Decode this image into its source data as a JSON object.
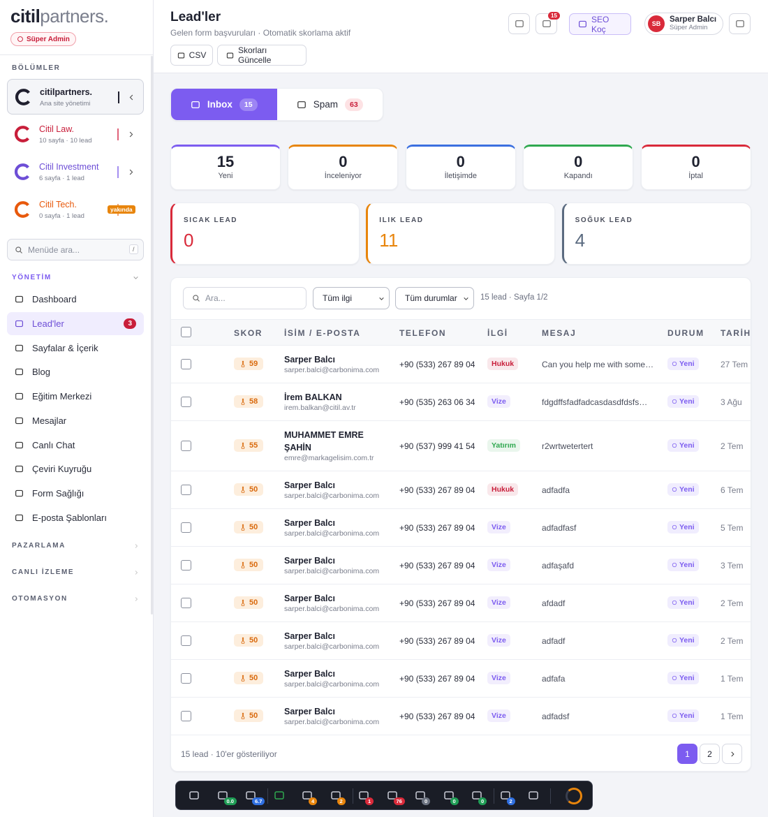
{
  "sidebar": {
    "logo": [
      "citil",
      "partners."
    ],
    "role_badge": "Süper Admin",
    "sections_label": "BÖLÜMLER",
    "sites": [
      {
        "name": "citilpartners.",
        "sub": "Ana site yönetimi",
        "color": "#1f1f2e",
        "bar": "#1f1f2e",
        "active": true,
        "tag": null
      },
      {
        "name": "Citil Law.",
        "sub": "10 sayfa · 10 lead",
        "color": "#c81e3a",
        "bar": "#e0637a",
        "active": false,
        "tag": null
      },
      {
        "name": "Citil Investment",
        "sub": "6 sayfa · 1 lead",
        "color": "#6d4ed6",
        "bar": "#a48ef0",
        "active": false,
        "tag": null
      },
      {
        "name": "Citil Tech.",
        "sub": "0 sayfa · 1 lead",
        "color": "#e8590c",
        "bar": "#f5a46b",
        "active": false,
        "tag": "yakında"
      }
    ],
    "search_placeholder": "Menüde ara...",
    "search_shortcut": "/",
    "group": {
      "label": "YÖNETİM",
      "items": [
        {
          "label": "Dashboard",
          "badge": null,
          "active": false
        },
        {
          "label": "Lead'ler",
          "badge": "3",
          "active": true
        },
        {
          "label": "Sayfalar & İçerik",
          "badge": null,
          "active": false
        },
        {
          "label": "Blog",
          "badge": null,
          "active": false
        },
        {
          "label": "Eğitim Merkezi",
          "badge": null,
          "active": false
        },
        {
          "label": "Mesajlar",
          "badge": null,
          "active": false
        },
        {
          "label": "Canlı Chat",
          "badge": null,
          "active": false
        },
        {
          "label": "Çeviri Kuyruğu",
          "badge": null,
          "active": false
        },
        {
          "label": "Form Sağlığı",
          "badge": null,
          "active": false
        },
        {
          "label": "E-posta Şablonları",
          "badge": null,
          "active": false
        }
      ]
    },
    "collapsed_groups": [
      "PAZARLAMA",
      "CANLI İZLEME",
      "OTOMASYON"
    ]
  },
  "header": {
    "title": "Lead'ler",
    "subtitle": "Gelen form başvuruları · Otomatik skorlama aktif",
    "buttons": [
      "CSV",
      "Skorları Güncelle"
    ],
    "notifications": "15",
    "coach": "SEO Koç",
    "user": {
      "initials": "SB",
      "name": "Sarper Balcı",
      "role": "Süper Admin"
    }
  },
  "tabs": [
    {
      "label": "Inbox",
      "count": 15,
      "active": true
    },
    {
      "label": "Spam",
      "count": 63,
      "active": false
    }
  ],
  "stats": [
    {
      "value": 15,
      "label": "Yeni",
      "color": "#7c5cf0"
    },
    {
      "value": 0,
      "label": "İnceleniyor",
      "color": "#e8850c"
    },
    {
      "value": 0,
      "label": "İletişimde",
      "color": "#3b6fe0"
    },
    {
      "value": 0,
      "label": "Kapandı",
      "color": "#2fa84f"
    },
    {
      "value": 0,
      "label": "İptal",
      "color": "#d92a3a"
    }
  ],
  "temperatures": [
    {
      "label": "SICAK LEAD",
      "value": 0,
      "color": "#d92a3a"
    },
    {
      "label": "ILIK LEAD",
      "value": 11,
      "color": "#e8850c"
    },
    {
      "label": "SOĞUK LEAD",
      "value": 4,
      "color": "#5b6b80"
    }
  ],
  "filters": {
    "search_placeholder": "Ara...",
    "selects": [
      "Tüm ilgi",
      "Tüm durumlar"
    ],
    "info": "15 lead · Sayfa 1/2"
  },
  "table": {
    "columns": [
      "SKOR",
      "İSİM / E-POSTA",
      "TELEFON",
      "İLGİ",
      "MESAJ",
      "DURUM",
      "TARİH"
    ],
    "rows": [
      {
        "score": 59,
        "name": "Sarper Balcı",
        "email": "sarper.balci@carbonima.com",
        "phone": "+90 (533) 267 89 04",
        "interest": "Hukuk",
        "interest_color": "#c81e3a",
        "message": "Can you help me with some…",
        "status": "Yeni",
        "date": "27 Tem"
      },
      {
        "score": 58,
        "name": "İrem BALKAN",
        "email": "irem.balkan@citil.av.tr",
        "phone": "+90 (535) 263 06 34",
        "interest": "Vize",
        "interest_color": "#7c5cf0",
        "message": "fdgdffsfadfadcasdasdfdsfs…",
        "status": "Yeni",
        "date": "3 Ağu"
      },
      {
        "score": 55,
        "name": "MUHAMMET EMRE ŞAHİN",
        "email": "emre@markagelisim.com.tr",
        "phone": "+90 (537) 999 41 54",
        "interest": "Yatırım",
        "interest_color": "#2fa84f",
        "message": "r2wrtwetertert",
        "status": "Yeni",
        "date": "2 Tem"
      },
      {
        "score": 50,
        "name": "Sarper Balcı",
        "email": "sarper.balci@carbonima.com",
        "phone": "+90 (533) 267 89 04",
        "interest": "Hukuk",
        "interest_color": "#c81e3a",
        "message": "adfadfa",
        "status": "Yeni",
        "date": "6 Tem"
      },
      {
        "score": 50,
        "name": "Sarper Balcı",
        "email": "sarper.balci@carbonima.com",
        "phone": "+90 (533) 267 89 04",
        "interest": "Vize",
        "interest_color": "#7c5cf0",
        "message": "adfadfasf",
        "status": "Yeni",
        "date": "5 Tem"
      },
      {
        "score": 50,
        "name": "Sarper Balcı",
        "email": "sarper.balci@carbonima.com",
        "phone": "+90 (533) 267 89 04",
        "interest": "Vize",
        "interest_color": "#7c5cf0",
        "message": "adfaşafd",
        "status": "Yeni",
        "date": "3 Tem"
      },
      {
        "score": 50,
        "name": "Sarper Balcı",
        "email": "sarper.balci@carbonima.com",
        "phone": "+90 (533) 267 89 04",
        "interest": "Vize",
        "interest_color": "#7c5cf0",
        "message": "afdadf",
        "status": "Yeni",
        "date": "2 Tem"
      },
      {
        "score": 50,
        "name": "Sarper Balcı",
        "email": "sarper.balci@carbonima.com",
        "phone": "+90 (533) 267 89 04",
        "interest": "Vize",
        "interest_color": "#7c5cf0",
        "message": "adfadf",
        "status": "Yeni",
        "date": "2 Tem"
      },
      {
        "score": 50,
        "name": "Sarper Balcı",
        "email": "sarper.balci@carbonima.com",
        "phone": "+90 (533) 267 89 04",
        "interest": "Vize",
        "interest_color": "#7c5cf0",
        "message": "adfafa",
        "status": "Yeni",
        "date": "1 Tem"
      },
      {
        "score": 50,
        "name": "Sarper Balcı",
        "email": "sarper.balci@carbonima.com",
        "phone": "+90 (533) 267 89 04",
        "interest": "Vize",
        "interest_color": "#7c5cf0",
        "message": "adfadsf",
        "status": "Yeni",
        "date": "1 Tem"
      }
    ],
    "footer": "15 lead · 10'er gösteriliyor",
    "pages": [
      1,
      2
    ]
  },
  "toolbar": [
    {
      "badge": null,
      "color": null
    },
    {
      "badge": "0.0",
      "color": "#1f9d55"
    },
    {
      "badge": "6.7",
      "color": "#2f6fe0"
    },
    {
      "badge": null,
      "color": null
    },
    {
      "badge": "4",
      "color": "#e8850c"
    },
    {
      "badge": "2",
      "color": "#e8850c"
    },
    {
      "badge": "1",
      "color": "#d92a3a"
    },
    {
      "badge": "76",
      "color": "#d92a3a"
    },
    {
      "badge": "0",
      "color": "#6b7280"
    },
    {
      "badge": "0",
      "color": "#1f9d55"
    },
    {
      "badge": "0",
      "color": "#1f9d55"
    },
    {
      "badge": "2",
      "color": "#2f6fe0"
    },
    {
      "badge": null,
      "color": null
    }
  ]
}
